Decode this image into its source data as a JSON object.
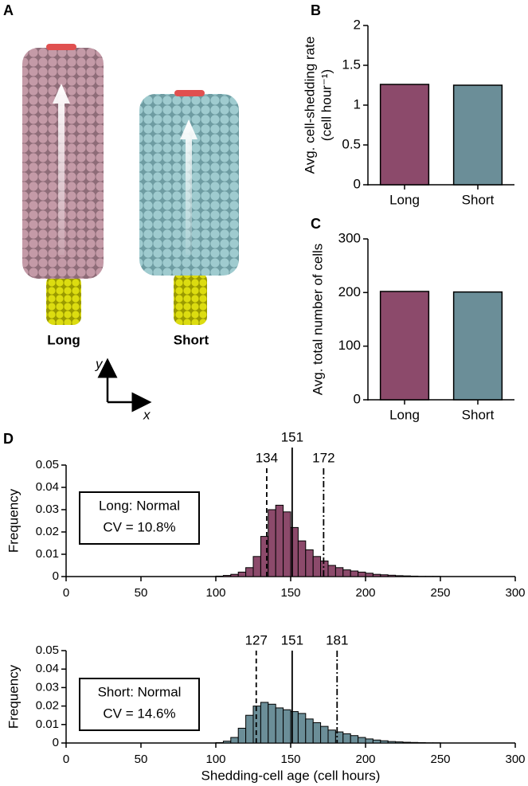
{
  "illustration": {
    "panel": "A",
    "labels": [
      "Long",
      "Short"
    ],
    "axes": [
      "y",
      "x"
    ]
  },
  "chart_data": [
    {
      "type": "bar",
      "panel": "B",
      "y_label": [
        "Avg. cell-shedding rate",
        "(cell hour⁻¹)"
      ],
      "categories": [
        "Long",
        "Short"
      ],
      "values": [
        1.26,
        1.25
      ],
      "colors": [
        "#8c4a6b",
        "#6b8e98"
      ],
      "ylim": [
        0,
        2
      ],
      "yticks": [
        0,
        0.5,
        1,
        1.5,
        2
      ]
    },
    {
      "type": "bar",
      "panel": "C",
      "y_label": [
        "Avg. total number of cells"
      ],
      "categories": [
        "Long",
        "Short"
      ],
      "values": [
        202,
        201
      ],
      "colors": [
        "#8c4a6b",
        "#6b8e98"
      ],
      "ylim": [
        0,
        300
      ],
      "yticks": [
        0,
        100,
        200,
        300
      ]
    },
    {
      "type": "histogram",
      "panel": "D",
      "y_label": [
        "Frequency"
      ],
      "color": "#8c4a6b",
      "box": [
        "Long: Normal",
        "CV = 10.8%"
      ],
      "bins": [
        100,
        105,
        110,
        115,
        120,
        125,
        130,
        135,
        140,
        145,
        150,
        155,
        160,
        165,
        170,
        175,
        180,
        185,
        190,
        195,
        200,
        205,
        210,
        215,
        220,
        225,
        230,
        235,
        240,
        245,
        250
      ],
      "counts": [
        0.0002,
        0.0005,
        0.001,
        0.002,
        0.004,
        0.009,
        0.018,
        0.03,
        0.032,
        0.029,
        0.022,
        0.016,
        0.012,
        0.009,
        0.007,
        0.005,
        0.004,
        0.003,
        0.0025,
        0.002,
        0.0015,
        0.001,
        0.0008,
        0.0006,
        0.0004,
        0.0003,
        0.0002,
        0.0001,
        0.0001,
        0.0001
      ],
      "markers": [
        {
          "value": 134,
          "style": "dashed"
        },
        {
          "value": 151,
          "style": "solid"
        },
        {
          "value": 172,
          "style": "dashdot"
        }
      ],
      "xlim": [
        0,
        300
      ],
      "xticks": [
        0,
        50,
        100,
        150,
        200,
        250,
        300
      ],
      "ylim": [
        0,
        0.05
      ],
      "yticks": [
        0,
        0.01,
        0.02,
        0.03,
        0.04,
        0.05
      ]
    },
    {
      "type": "histogram",
      "y_label": [
        "Frequency"
      ],
      "x_label": "Shedding-cell age (cell hours)",
      "color": "#6b8e98",
      "box": [
        "Short: Normal",
        "CV = 14.6%"
      ],
      "bins": [
        100,
        105,
        110,
        115,
        120,
        125,
        130,
        135,
        140,
        145,
        150,
        155,
        160,
        165,
        170,
        175,
        180,
        185,
        190,
        195,
        200,
        205,
        210,
        215,
        220,
        225,
        230,
        235,
        240,
        245,
        250
      ],
      "counts": [
        0.0002,
        0.001,
        0.003,
        0.008,
        0.015,
        0.02,
        0.022,
        0.021,
        0.019,
        0.018,
        0.017,
        0.016,
        0.013,
        0.011,
        0.009,
        0.007,
        0.006,
        0.005,
        0.004,
        0.003,
        0.0022,
        0.0016,
        0.0012,
        0.0008,
        0.0006,
        0.0004,
        0.0003,
        0.0002,
        0.0001,
        0.0001
      ],
      "markers": [
        {
          "value": 127,
          "style": "dashed"
        },
        {
          "value": 151,
          "style": "solid"
        },
        {
          "value": 181,
          "style": "dashdot"
        }
      ],
      "xlim": [
        0,
        300
      ],
      "xticks": [
        0,
        50,
        100,
        150,
        200,
        250,
        300
      ],
      "ylim": [
        0,
        0.05
      ],
      "yticks": [
        0,
        0.01,
        0.02,
        0.03,
        0.04,
        0.05
      ]
    }
  ]
}
